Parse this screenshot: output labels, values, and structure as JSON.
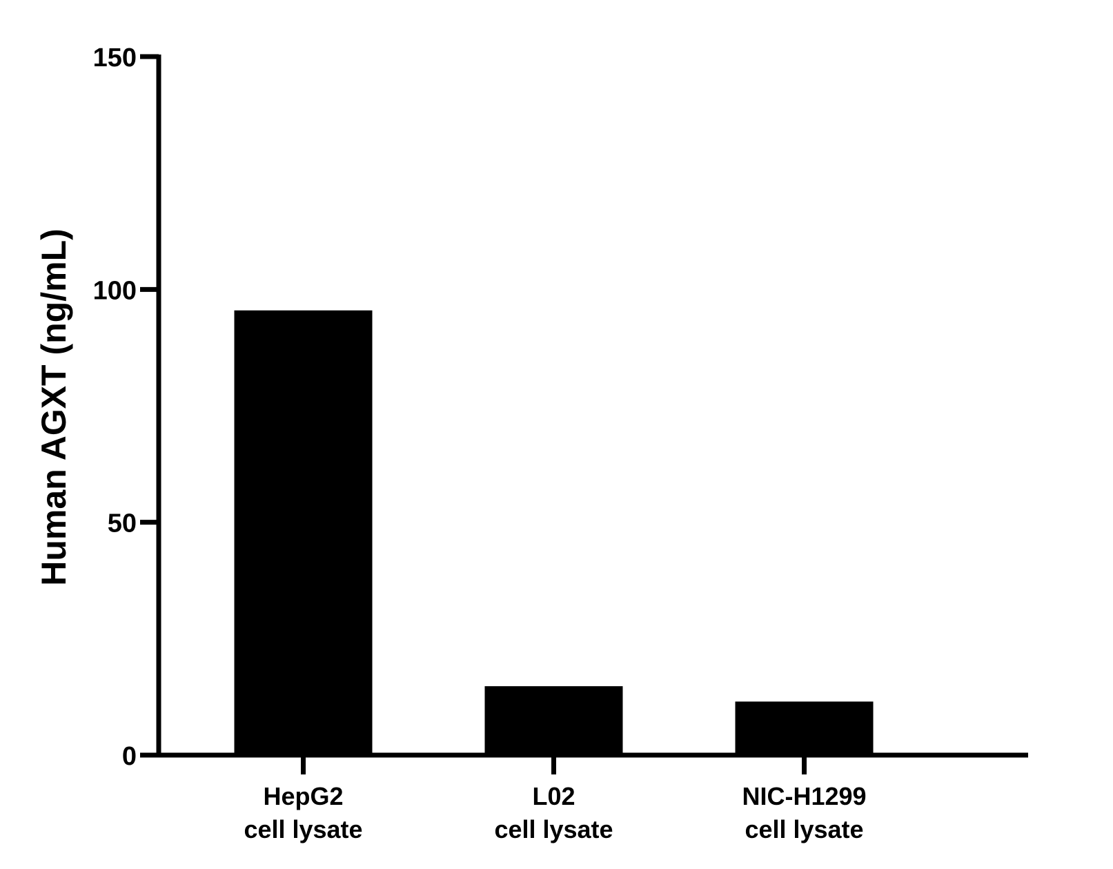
{
  "chart_data": {
    "type": "bar",
    "title": "",
    "xlabel": "",
    "ylabel": "Human AGXT (ng/mL)",
    "ylim": [
      0,
      150
    ],
    "yticks": [
      0,
      50,
      100,
      150
    ],
    "grid": false,
    "categories": [
      [
        "HepG2",
        "cell lysate"
      ],
      [
        "L02",
        "cell lysate"
      ],
      [
        "NIC-H1299",
        "cell lysate"
      ]
    ],
    "values": [
      95.5,
      14.8,
      11.5
    ],
    "colors": {
      "bar": "#000000",
      "axis": "#000000",
      "background": "#ffffff"
    }
  }
}
